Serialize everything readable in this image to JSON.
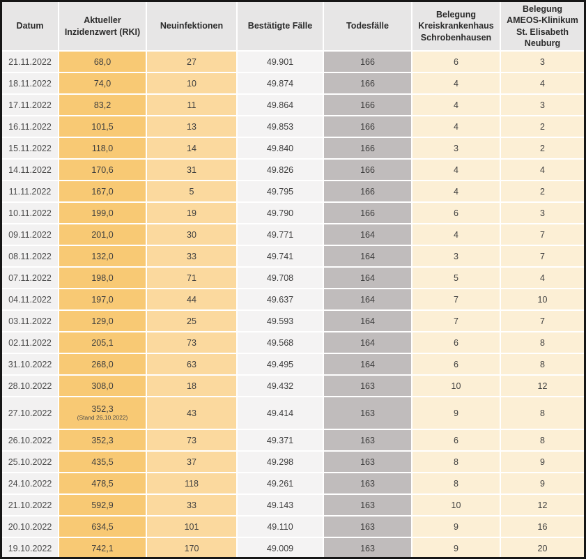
{
  "table": {
    "columns": [
      {
        "key": "datum",
        "label": "Datum"
      },
      {
        "key": "inzidenz",
        "label": "Aktueller Inzidenzwert (RKI)"
      },
      {
        "key": "neuinfektionen",
        "label": "Neuinfektionen"
      },
      {
        "key": "bestaetigte",
        "label": "Bestätigte Fälle"
      },
      {
        "key": "todesfaelle",
        "label": "Todesfälle"
      },
      {
        "key": "kkh",
        "label": "Belegung Kreiskrankenhaus Schrobenhausen"
      },
      {
        "key": "ameos",
        "label": "Belegung AMEOS-Klinikum St. Elisabeth Neuburg"
      }
    ],
    "rows": [
      {
        "datum": "21.11.2022",
        "inzidenz": "68,0",
        "inzidenz_note": "",
        "neuinfektionen": "27",
        "bestaetigte": "49.901",
        "todesfaelle": "166",
        "kkh": "6",
        "ameos": "3"
      },
      {
        "datum": "18.11.2022",
        "inzidenz": "74,0",
        "inzidenz_note": "",
        "neuinfektionen": "10",
        "bestaetigte": "49.874",
        "todesfaelle": "166",
        "kkh": "4",
        "ameos": "4"
      },
      {
        "datum": "17.11.2022",
        "inzidenz": "83,2",
        "inzidenz_note": "",
        "neuinfektionen": "11",
        "bestaetigte": "49.864",
        "todesfaelle": "166",
        "kkh": "4",
        "ameos": "3"
      },
      {
        "datum": "16.11.2022",
        "inzidenz": "101,5",
        "inzidenz_note": "",
        "neuinfektionen": "13",
        "bestaetigte": "49.853",
        "todesfaelle": "166",
        "kkh": "4",
        "ameos": "2"
      },
      {
        "datum": "15.11.2022",
        "inzidenz": "118,0",
        "inzidenz_note": "",
        "neuinfektionen": "14",
        "bestaetigte": "49.840",
        "todesfaelle": "166",
        "kkh": "3",
        "ameos": "2"
      },
      {
        "datum": "14.11.2022",
        "inzidenz": "170,6",
        "inzidenz_note": "",
        "neuinfektionen": "31",
        "bestaetigte": "49.826",
        "todesfaelle": "166",
        "kkh": "4",
        "ameos": "4"
      },
      {
        "datum": "11.11.2022",
        "inzidenz": "167,0",
        "inzidenz_note": "",
        "neuinfektionen": "5",
        "bestaetigte": "49.795",
        "todesfaelle": "166",
        "kkh": "4",
        "ameos": "2"
      },
      {
        "datum": "10.11.2022",
        "inzidenz": "199,0",
        "inzidenz_note": "",
        "neuinfektionen": "19",
        "bestaetigte": "49.790",
        "todesfaelle": "166",
        "kkh": "6",
        "ameos": "3"
      },
      {
        "datum": "09.11.2022",
        "inzidenz": "201,0",
        "inzidenz_note": "",
        "neuinfektionen": "30",
        "bestaetigte": "49.771",
        "todesfaelle": "164",
        "kkh": "4",
        "ameos": "7"
      },
      {
        "datum": "08.11.2022",
        "inzidenz": "132,0",
        "inzidenz_note": "",
        "neuinfektionen": "33",
        "bestaetigte": "49.741",
        "todesfaelle": "164",
        "kkh": "3",
        "ameos": "7"
      },
      {
        "datum": "07.11.2022",
        "inzidenz": "198,0",
        "inzidenz_note": "",
        "neuinfektionen": "71",
        "bestaetigte": "49.708",
        "todesfaelle": "164",
        "kkh": "5",
        "ameos": "4"
      },
      {
        "datum": "04.11.2022",
        "inzidenz": "197,0",
        "inzidenz_note": "",
        "neuinfektionen": "44",
        "bestaetigte": "49.637",
        "todesfaelle": "164",
        "kkh": "7",
        "ameos": "10"
      },
      {
        "datum": "03.11.2022",
        "inzidenz": "129,0",
        "inzidenz_note": "",
        "neuinfektionen": "25",
        "bestaetigte": "49.593",
        "todesfaelle": "164",
        "kkh": "7",
        "ameos": "7"
      },
      {
        "datum": "02.11.2022",
        "inzidenz": "205,1",
        "inzidenz_note": "",
        "neuinfektionen": "73",
        "bestaetigte": "49.568",
        "todesfaelle": "164",
        "kkh": "6",
        "ameos": "8"
      },
      {
        "datum": "31.10.2022",
        "inzidenz": "268,0",
        "inzidenz_note": "",
        "neuinfektionen": "63",
        "bestaetigte": "49.495",
        "todesfaelle": "164",
        "kkh": "6",
        "ameos": "8"
      },
      {
        "datum": "28.10.2022",
        "inzidenz": "308,0",
        "inzidenz_note": "",
        "neuinfektionen": "18",
        "bestaetigte": "49.432",
        "todesfaelle": "163",
        "kkh": "10",
        "ameos": "12"
      },
      {
        "datum": "27.10.2022",
        "inzidenz": "352,3",
        "inzidenz_note": "(Stand 26.10.2022)",
        "neuinfektionen": "43",
        "bestaetigte": "49.414",
        "todesfaelle": "163",
        "kkh": "9",
        "ameos": "8"
      },
      {
        "datum": "26.10.2022",
        "inzidenz": "352,3",
        "inzidenz_note": "",
        "neuinfektionen": "73",
        "bestaetigte": "49.371",
        "todesfaelle": "163",
        "kkh": "6",
        "ameos": "8"
      },
      {
        "datum": "25.10.2022",
        "inzidenz": "435,5",
        "inzidenz_note": "",
        "neuinfektionen": "37",
        "bestaetigte": "49.298",
        "todesfaelle": "163",
        "kkh": "8",
        "ameos": "9"
      },
      {
        "datum": "24.10.2022",
        "inzidenz": "478,5",
        "inzidenz_note": "",
        "neuinfektionen": "118",
        "bestaetigte": "49.261",
        "todesfaelle": "163",
        "kkh": "8",
        "ameos": "9"
      },
      {
        "datum": "21.10.2022",
        "inzidenz": "592,9",
        "inzidenz_note": "",
        "neuinfektionen": "33",
        "bestaetigte": "49.143",
        "todesfaelle": "163",
        "kkh": "10",
        "ameos": "12"
      },
      {
        "datum": "20.10.2022",
        "inzidenz": "634,5",
        "inzidenz_note": "",
        "neuinfektionen": "101",
        "bestaetigte": "49.110",
        "todesfaelle": "163",
        "kkh": "9",
        "ameos": "16"
      },
      {
        "datum": "19.10.2022",
        "inzidenz": "742,1",
        "inzidenz_note": "",
        "neuinfektionen": "170",
        "bestaetigte": "49.009",
        "todesfaelle": "163",
        "kkh": "9",
        "ameos": "20"
      }
    ]
  },
  "colors": {
    "frame_border": "#161616",
    "header_bg": "#e7e6e6",
    "datum_bg": "#f2f1f1",
    "inzidenz_bg": "#f8c974",
    "neuinfektionen_bg": "#fbd99e",
    "bestaetigte_bg": "#f4f3f3",
    "todesfaelle_bg": "#c0bcbc",
    "belegung_bg": "#fcefd5",
    "text": "#3e3e3e"
  }
}
